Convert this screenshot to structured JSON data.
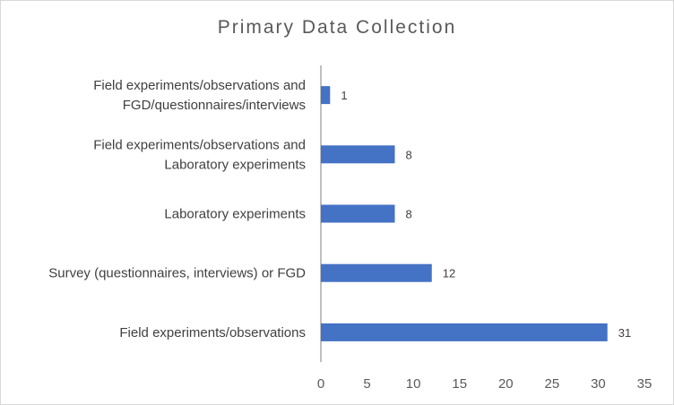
{
  "chart_data": {
    "type": "bar",
    "orientation": "horizontal",
    "title": "Primary Data Collection",
    "categories": [
      [
        "Field experiments/observations and",
        "FGD/questionnaires/interviews"
      ],
      [
        "Field experiments/observations and",
        "Laboratory experiments"
      ],
      [
        "Laboratory experiments"
      ],
      [
        "Survey (questionnaires, interviews) or FGD"
      ],
      [
        "Field experiments/observations"
      ]
    ],
    "values": [
      1,
      8,
      8,
      12,
      31
    ],
    "xlim": [
      0,
      35
    ],
    "xticks": [
      0,
      5,
      10,
      15,
      20,
      25,
      30,
      35
    ],
    "grid": false,
    "legend": "none",
    "bar_color": "#4472c4",
    "axis_color": "#bfbfbf"
  }
}
